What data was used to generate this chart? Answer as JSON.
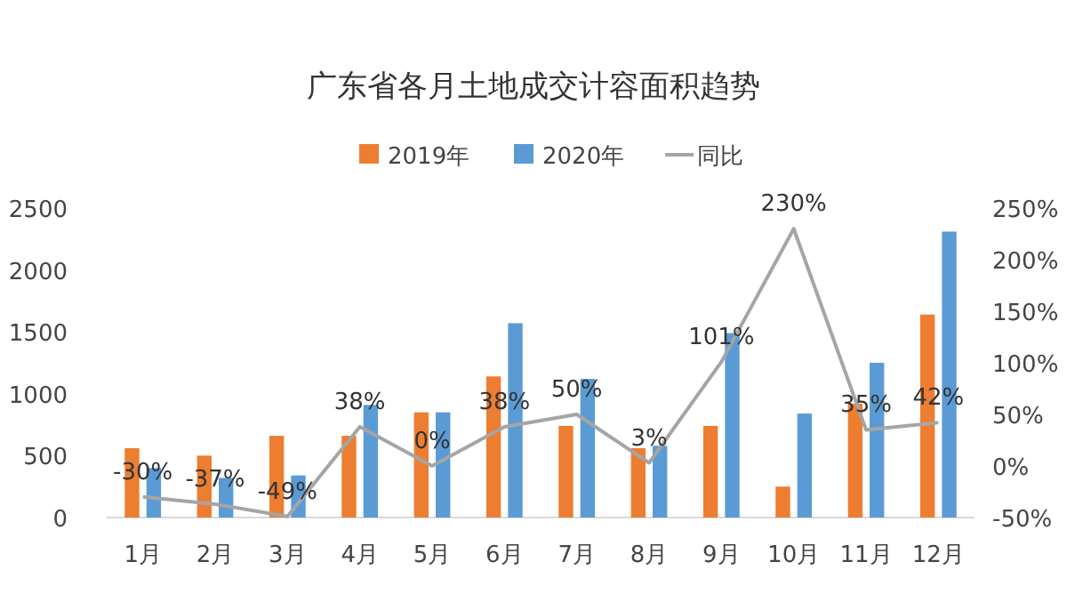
{
  "chart_data": {
    "type": "bar",
    "title": "广东省各月土地成交计容面积趋势",
    "categories": [
      "1月",
      "2月",
      "3月",
      "4月",
      "5月",
      "6月",
      "7月",
      "8月",
      "9月",
      "10月",
      "11月",
      "12月"
    ],
    "series": [
      {
        "name": "2019年",
        "color": "#ed7d31",
        "values": [
          560,
          500,
          660,
          660,
          850,
          1140,
          740,
          560,
          740,
          250,
          920,
          1640
        ]
      },
      {
        "name": "2020年",
        "color": "#5b9bd5",
        "values": [
          400,
          320,
          340,
          910,
          850,
          1570,
          1120,
          580,
          1490,
          840,
          1250,
          2310
        ]
      },
      {
        "name": "同比",
        "type": "line",
        "axis": "y2",
        "color": "#a5a5a5",
        "data_labels": true,
        "value_labels": [
          "-30%",
          "-37%",
          "-49%",
          "38%",
          "0%",
          "38%",
          "50%",
          "3%",
          "101%",
          "230%",
          "35%",
          "42%"
        ],
        "values": [
          -30,
          -37,
          -49,
          38,
          0,
          38,
          50,
          3,
          101,
          230,
          35,
          42
        ]
      }
    ],
    "ylim": [
      0,
      2500
    ],
    "yticks": [
      0,
      500,
      1000,
      1500,
      2000,
      2500
    ],
    "y2lim": [
      -50,
      250
    ],
    "y2ticks": [
      {
        "value": -50,
        "label": "-50%"
      },
      {
        "value": 0,
        "label": "0%"
      },
      {
        "value": 50,
        "label": "50%"
      },
      {
        "value": 100,
        "label": "100%"
      },
      {
        "value": 150,
        "label": "150%"
      },
      {
        "value": 200,
        "label": "200%"
      },
      {
        "value": 250,
        "label": "250%"
      }
    ],
    "legend": "top",
    "grid": false
  }
}
